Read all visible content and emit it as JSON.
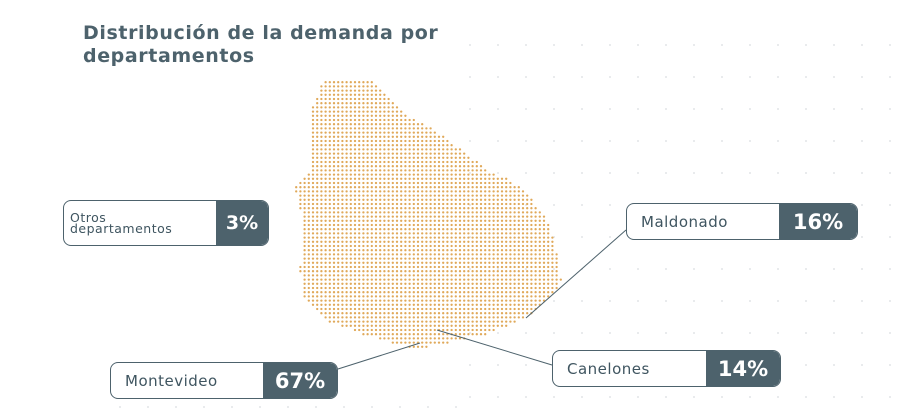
{
  "title": "Distribución de la demanda por departamentos",
  "colors": {
    "map_dot": "#e0a95a",
    "callout": "#4d626c",
    "bg_dot": "#d9dde0"
  },
  "regions": [
    {
      "id": "otros",
      "name": "Otros\ndepartamentos",
      "share": "3%"
    },
    {
      "id": "maldonado",
      "name": "Maldonado",
      "share": "16%"
    },
    {
      "id": "canelones",
      "name": "Canelones",
      "share": "14%"
    },
    {
      "id": "montevideo",
      "name": "Montevideo",
      "share": "67%"
    }
  ]
}
